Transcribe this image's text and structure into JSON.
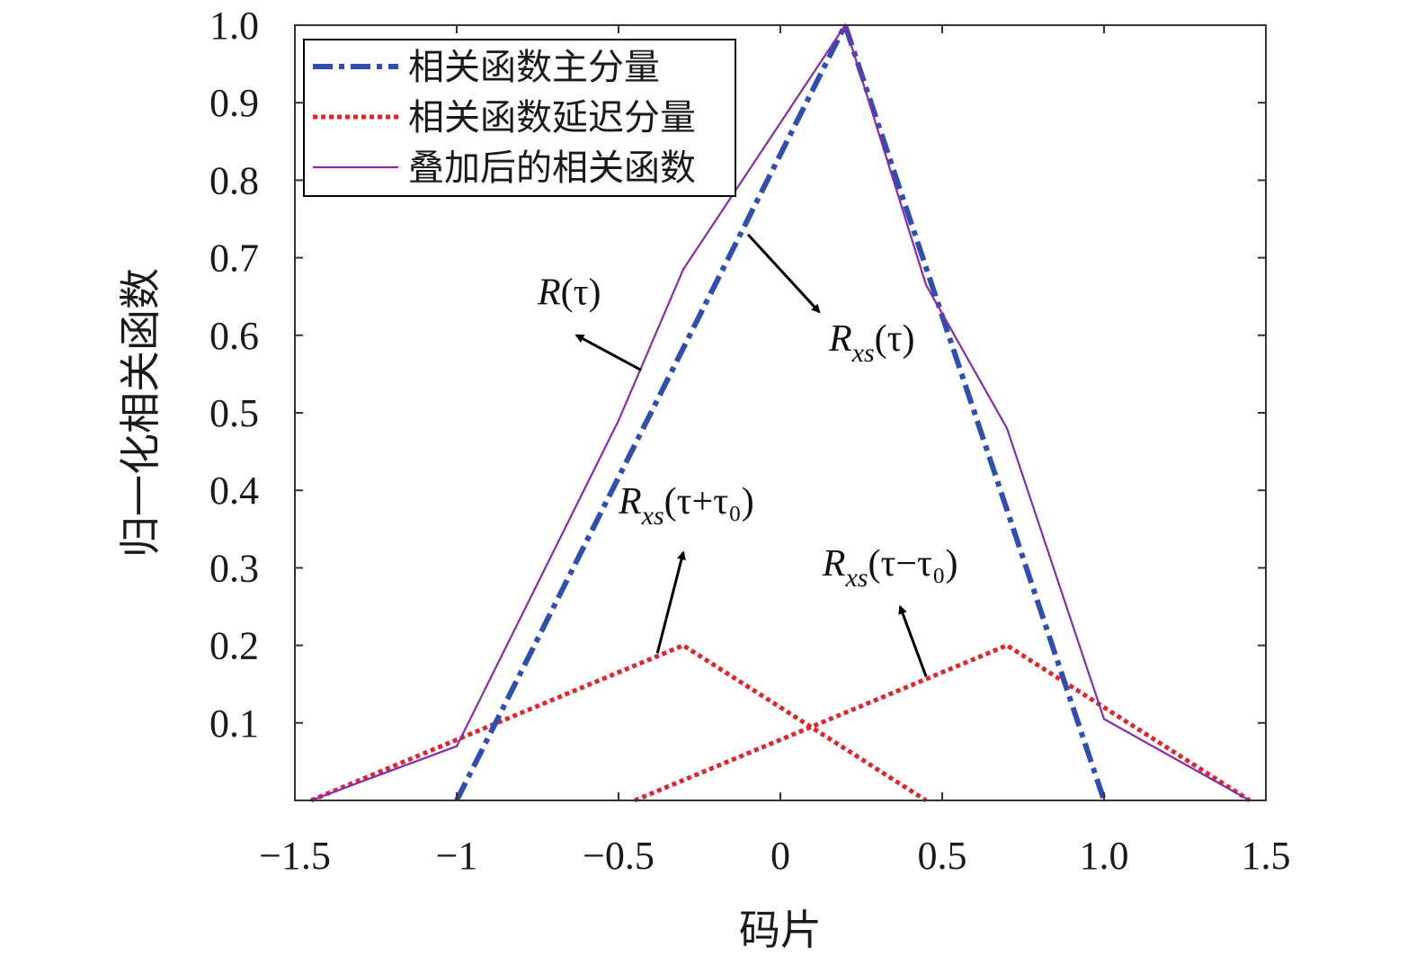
{
  "chart_data": {
    "type": "line",
    "xlabel": "码片",
    "ylabel": "归一化相关函数",
    "xlim": [
      -1.5,
      1.5
    ],
    "ylim": [
      0,
      1.0
    ],
    "xticks": [
      -1.5,
      -1,
      -0.5,
      0,
      0.5,
      1.0,
      1.5
    ],
    "xtick_labels": [
      "−1.5",
      "−1",
      "−0.5",
      "0",
      "0.5",
      "1.0",
      "1.5"
    ],
    "yticks": [
      0.1,
      0.2,
      0.3,
      0.4,
      0.5,
      0.6,
      0.7,
      0.8,
      0.9,
      1.0
    ],
    "ytick_labels": [
      "0.1",
      "0.2",
      "0.3",
      "0.4",
      "0.5",
      "0.6",
      "0.7",
      "0.8",
      "0.9",
      "1.0"
    ],
    "legend_position": "top-left",
    "grid": false,
    "series": [
      {
        "name": "相关函数主分量",
        "style": "dashdot",
        "color": "#2e4fb0",
        "points": [
          [
            -1.0,
            0.0
          ],
          [
            0.2,
            1.0
          ],
          [
            1.0,
            0.0
          ]
        ]
      },
      {
        "name": "相关函数延迟分量",
        "style": "dotted",
        "color": "#e0262d",
        "points": [
          [
            -1.45,
            0.0
          ],
          [
            -0.3,
            0.2
          ],
          [
            0.45,
            0.0
          ]
        ]
      },
      {
        "name": "相关函数延迟分量",
        "style": "dotted",
        "color": "#e0262d",
        "show_in_legend": false,
        "points": [
          [
            -0.45,
            0.0
          ],
          [
            0.7,
            0.2
          ],
          [
            1.45,
            0.0
          ]
        ]
      },
      {
        "name": "叠加后的相关函数",
        "style": "solid",
        "color": "#8a2aa8",
        "points": [
          [
            -1.45,
            0.0
          ],
          [
            -1.0,
            0.07
          ],
          [
            -0.5,
            0.49
          ],
          [
            -0.3,
            0.685
          ],
          [
            0.2,
            1.0
          ],
          [
            0.45,
            0.665
          ],
          [
            0.7,
            0.48
          ],
          [
            1.0,
            0.105
          ],
          [
            1.45,
            0.0
          ]
        ]
      }
    ],
    "annotations": [
      {
        "base": "R",
        "sub": "",
        "arg": "(τ)",
        "text_at": [
          -0.75,
          0.64
        ],
        "arrow_from": [
          -0.43,
          0.555
        ],
        "arrow_to": [
          -0.63,
          0.6
        ]
      },
      {
        "base": "R",
        "sub": "xs",
        "arg": "(τ)",
        "text_at": [
          0.15,
          0.58
        ],
        "arrow_from": [
          -0.1,
          0.73
        ],
        "arrow_to": [
          0.12,
          0.63
        ]
      },
      {
        "base": "R",
        "sub": "xs",
        "arg": "(τ+τ₀)",
        "text_at": [
          -0.5,
          0.37
        ],
        "arrow_from": [
          -0.38,
          0.19
        ],
        "arrow_to": [
          -0.3,
          0.32
        ]
      },
      {
        "base": "R",
        "sub": "xs",
        "arg": "(τ−τ₀)",
        "text_at": [
          0.13,
          0.29
        ],
        "arrow_from": [
          0.45,
          0.16
        ],
        "arrow_to": [
          0.37,
          0.25
        ]
      }
    ]
  }
}
